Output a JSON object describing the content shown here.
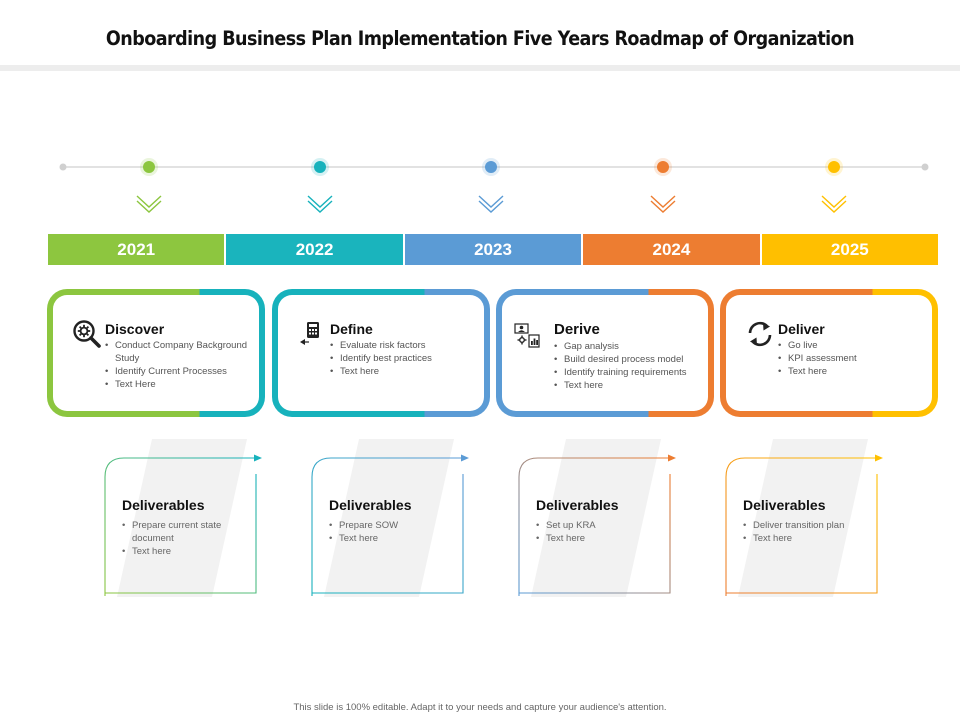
{
  "title": "Onboarding Business Plan Implementation Five Years Roadmap of Organization",
  "colors": {
    "green": "#8cc63f",
    "teal": "#17b2bc",
    "blue": "#5b9bd5",
    "orange": "#ed7d31",
    "yellow": "#ffc000",
    "green_bar": "#8dc63f",
    "teal_bar": "#1ab4bd",
    "blue_bar": "#5b9bd5",
    "orange_bar": "#ed7d31",
    "yellow_bar": "#ffbf00",
    "timeline_line": "#d9d9d9",
    "watermark": "#f2f2f2"
  },
  "years": [
    {
      "label": "2021",
      "color": "#8dc63f"
    },
    {
      "label": "2022",
      "color": "#1ab4bd"
    },
    {
      "label": "2023",
      "color": "#5b9bd5"
    },
    {
      "label": "2024",
      "color": "#ed7d31"
    },
    {
      "label": "2025",
      "color": "#ffbf00"
    }
  ],
  "phases": [
    {
      "title": "Discover",
      "icon": "magnifier-gear-icon",
      "items": [
        "Conduct Company Background Study",
        "Identify Current Processes",
        "Text Here"
      ]
    },
    {
      "title": "Define",
      "icon": "calculator-presentation-icon",
      "items": [
        "Evaluate risk factors",
        "Identify best practices",
        "Text here"
      ]
    },
    {
      "title": "Derive",
      "icon": "chart-settings-icon",
      "items": [
        "Gap analysis",
        "Build desired process model",
        "Identify training requirements",
        "Text here"
      ]
    },
    {
      "title": "Deliver",
      "icon": "refresh-arrows-icon",
      "items": [
        "Go live",
        "KPI assessment",
        "Text here"
      ]
    }
  ],
  "deliverables": [
    {
      "title": "Deliverables",
      "items": [
        "Prepare current state document",
        "Text here"
      ]
    },
    {
      "title": "Deliverables",
      "items": [
        "Prepare SOW",
        "Text here"
      ]
    },
    {
      "title": "Deliverables",
      "items": [
        "Set up KRA",
        "Text here"
      ]
    },
    {
      "title": "Deliverables",
      "items": [
        "Deliver transition plan",
        "Text here"
      ]
    }
  ],
  "footer": "This slide is 100% editable. Adapt it to your needs and capture your audience's attention."
}
